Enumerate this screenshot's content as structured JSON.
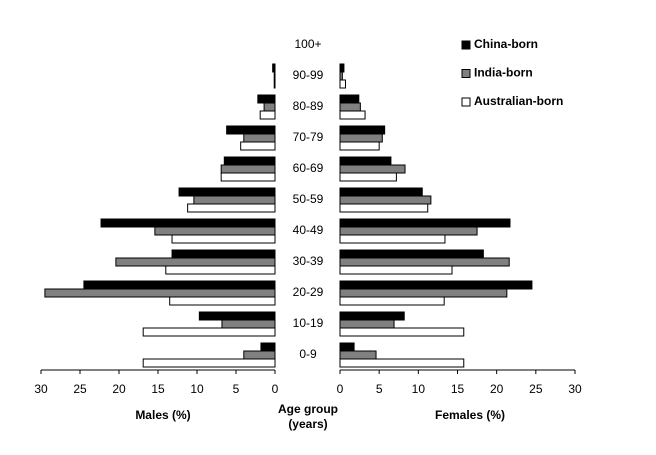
{
  "chart_data": {
    "type": "pyramid",
    "categories": [
      "0-9",
      "10-19",
      "20-29",
      "30-39",
      "40-49",
      "50-59",
      "60-69",
      "70-79",
      "80-89",
      "90-99",
      "100+"
    ],
    "y_label": [
      "Age group",
      "(years)"
    ],
    "males": {
      "label": "Males (%)",
      "xlim": [
        30,
        0
      ],
      "xticks": [
        30,
        25,
        20,
        15,
        10,
        5,
        0
      ]
    },
    "females": {
      "label": "Females (%)",
      "xlim": [
        0,
        30
      ],
      "xticks": [
        0,
        5,
        10,
        15,
        20,
        25,
        30
      ]
    },
    "legend": "top-right",
    "series": [
      {
        "name": "China-born",
        "color": "#000000",
        "males": [
          1.8,
          9.7,
          24.5,
          13.2,
          22.3,
          12.3,
          6.5,
          6.2,
          2.2,
          0.3,
          0
        ],
        "females": [
          1.8,
          8.2,
          24.5,
          18.3,
          21.7,
          10.5,
          6.5,
          5.7,
          2.4,
          0.5,
          0
        ]
      },
      {
        "name": "India-born",
        "color": "#808080",
        "males": [
          4.0,
          6.8,
          29.5,
          20.4,
          15.4,
          10.4,
          6.9,
          4.0,
          1.4,
          0.1,
          0
        ],
        "females": [
          4.6,
          6.9,
          21.3,
          21.6,
          17.5,
          11.6,
          8.3,
          5.4,
          2.6,
          0.3,
          0
        ]
      },
      {
        "name": "Australian-born",
        "color": "#ffffff",
        "males": [
          16.9,
          16.9,
          13.5,
          14.0,
          13.2,
          11.2,
          6.9,
          4.4,
          1.9,
          0.1,
          0
        ],
        "females": [
          15.8,
          15.8,
          13.3,
          14.3,
          13.4,
          11.2,
          7.2,
          5.0,
          3.2,
          0.7,
          0
        ]
      }
    ]
  }
}
